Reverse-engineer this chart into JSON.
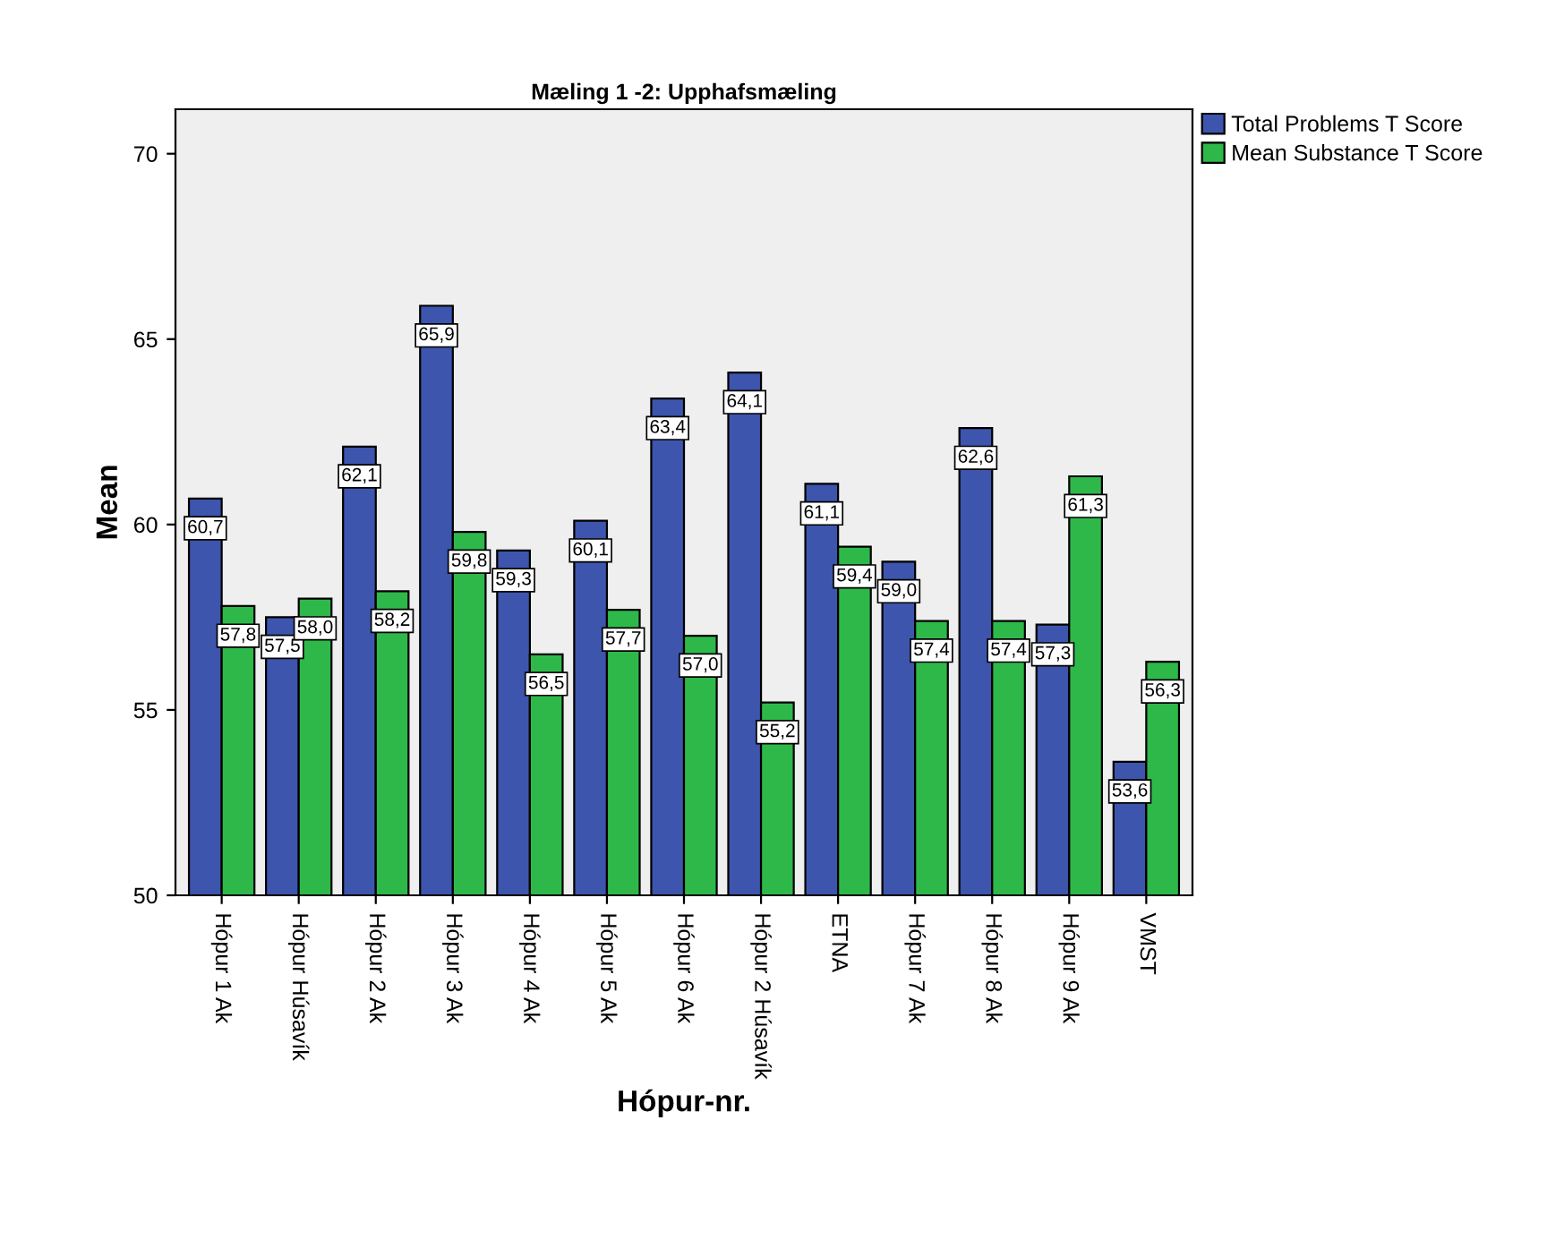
{
  "chart_data": {
    "type": "bar",
    "title": "Mæling 1 -2: Upphafsmæling",
    "xlabel": "Hópur-nr.",
    "ylabel": "Mean",
    "categories": [
      "Hópur 1 Ak",
      "Hópur Húsavík",
      "Hópur 2 Ak",
      "Hópur 3 Ak",
      "Hópur 4 Ak",
      "Hópur 5 Ak",
      "Hópur 6 Ak",
      "Hópur 2 Húsavík",
      "ETNA",
      "Hópur 7 Ak",
      "Hópur 8 Ak",
      "Hópur 9 Ak",
      "VMST"
    ],
    "series": [
      {
        "name": "Total Problems T Score",
        "color": "#3d55ad",
        "values": [
          60.7,
          57.5,
          62.1,
          65.9,
          59.3,
          60.1,
          63.4,
          64.1,
          61.1,
          59.0,
          62.6,
          57.3,
          53.6
        ],
        "value_labels": [
          "60,7",
          "57,5",
          "62,1",
          "65,9",
          "59,3",
          "60,1",
          "63,4",
          "64,1",
          "61,1",
          "59,0",
          "62,6",
          "57,3",
          "53,6"
        ]
      },
      {
        "name": "Mean Substance T Score",
        "color": "#2fb84a",
        "values": [
          57.8,
          58.0,
          58.2,
          59.8,
          56.5,
          57.7,
          57.0,
          55.2,
          59.4,
          57.4,
          57.4,
          61.3,
          56.3
        ],
        "value_labels": [
          "57,8",
          "58,0",
          "58,2",
          "59,8",
          "56,5",
          "57,7",
          "57,0",
          "55,2",
          "59,4",
          "57,4",
          "57,4",
          "61,3",
          "56,3"
        ]
      }
    ],
    "ylim": [
      50,
      71.2
    ],
    "yticks": [
      50,
      55,
      60,
      65,
      70
    ],
    "grid": false,
    "legend": "top right"
  }
}
